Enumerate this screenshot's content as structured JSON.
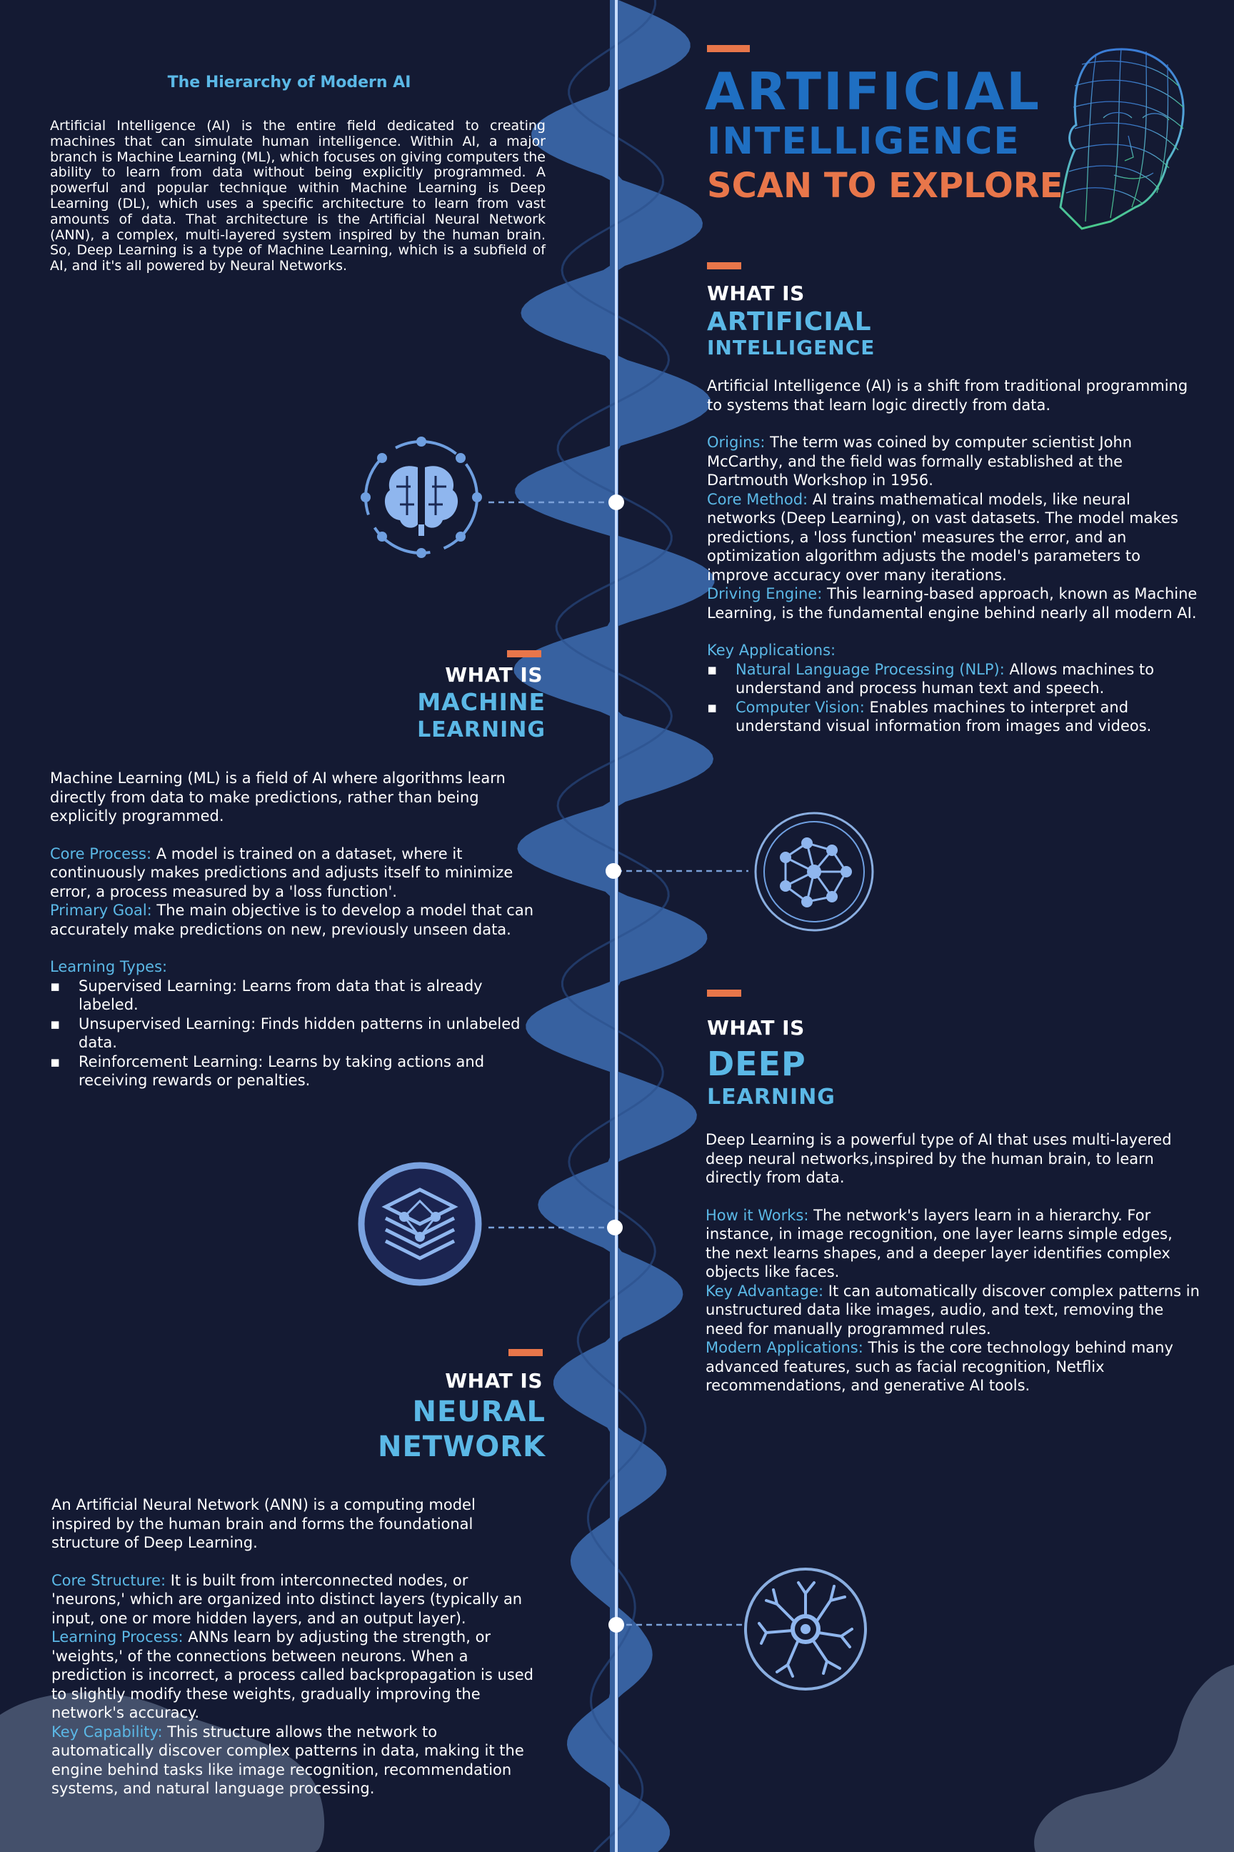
{
  "header": {
    "title_line1": "ARTIFICIAL",
    "title_line2": "INTELLIGENCE",
    "title_line3": "SCAN TO EXPLORE",
    "colors": {
      "background": "#141a33",
      "accent": "#e8764a",
      "primary_blue": "#1f6fc2",
      "light_blue": "#5bb8e6",
      "wave": "#3d6fb4"
    }
  },
  "intro": {
    "title": "The Hierarchy of Modern AI",
    "text": "Artificial Intelligence (AI) is the entire field dedicated to creating machines that can simulate human intelligence. Within AI, a major branch is Machine Learning (ML), which focuses on giving computers the ability to learn from data without being explicitly programmed. A powerful and popular technique within Machine Learning is Deep Learning (DL), which uses a specific architecture to learn from vast amounts of data. That architecture is the Artificial Neural Network (ANN), a complex, multi-layered system inspired by the human brain. So, Deep Learning is a type of Machine Learning, which is a subfield of AI, and it's all powered by Neural Networks."
  },
  "sections": {
    "ai": {
      "what_is": "WHAT IS",
      "title_line1": "ARTIFICIAL",
      "title_line2": "INTELLIGENCE",
      "intro": "Artificial Intelligence (AI) is a shift from traditional programming to systems that learn logic directly from data.",
      "origins_label": "Origins:",
      "origins_text": " The term was coined by computer scientist John McCarthy, and the field was formally established at the Dartmouth Workshop in 1956.",
      "core_label": "Core Method:",
      "core_text": " AI trains mathematical models, like neural networks (Deep Learning), on vast datasets. The model makes predictions, a 'loss function' measures the error, and an optimization algorithm adjusts the model's parameters to improve accuracy over many iterations.",
      "engine_label": "Driving Engine:",
      "engine_text": " This learning-based approach, known as Machine Learning, is the fundamental engine behind nearly all modern AI.",
      "apps_label": "Key Applications:",
      "bullet_char": "▪",
      "apps": [
        {
          "label": "Natural Language Processing (NLP):",
          "text": " Allows machines to understand and process human text and speech."
        },
        {
          "label": "Computer Vision:",
          "text": " Enables machines to interpret and understand visual information from images and videos."
        }
      ],
      "icon": "brain-icon"
    },
    "ml": {
      "what_is": "WHAT IS",
      "title_line1": "MACHINE",
      "title_line2": "LEARNING",
      "intro": "Machine Learning (ML) is a field of AI where algorithms learn directly from data to make predictions, rather than being explicitly programmed.",
      "core_label": "Core Process:",
      "core_text": " A model is trained on a dataset, where it continuously makes predictions and adjusts itself to minimize error, a process measured by a 'loss function'.",
      "goal_label": "Primary Goal:",
      "goal_text": " The main objective is to develop a model that can accurately make predictions on new, previously unseen data.",
      "types_label": "Learning Types:",
      "bullet_char": "▪",
      "types": [
        "Supervised Learning: Learns from data that is already labeled.",
        "Unsupervised Learning: Finds hidden patterns in unlabeled data.",
        "Reinforcement Learning: Learns by taking actions and receiving rewards or penalties."
      ],
      "icon": "network-nodes-icon"
    },
    "dl": {
      "what_is": "WHAT IS",
      "title_line1": "DEEP",
      "title_line2": "LEARNING",
      "intro": "Deep Learning is a powerful type of AI that uses multi-layered deep neural networks,inspired by the human brain, to learn directly from data.",
      "how_label": "How it Works:",
      "how_text": " The network's layers learn in a hierarchy. For instance, in image recognition, one layer learns simple edges, the next learns shapes, and a deeper layer identifies complex objects like faces.",
      "adv_label": "Key Advantage:",
      "adv_text": " It can automatically discover complex patterns in unstructured data like images, audio, and text, removing the need for manually programmed rules.",
      "apps_label": "Modern Applications:",
      "apps_text": " This is the core technology behind many advanced features, such as facial recognition, Netflix recommendations, and generative AI tools.",
      "icon": "layers-icon"
    },
    "nn": {
      "what_is": "WHAT IS",
      "title_line1": "NEURAL",
      "title_line2": "NETWORK",
      "intro": "An Artificial Neural Network (ANN) is a computing model inspired by the human brain and forms the foundational structure of Deep Learning.",
      "core_label": "Core Structure:",
      "core_text": " It is built from interconnected nodes, or 'neurons,' which are organized into distinct layers (typically an input, one or more hidden layers, and an output layer).",
      "learn_label": "Learning Process:",
      "learn_text": " ANNs learn by adjusting the strength, or 'weights,' of the connections between neurons. When a prediction is incorrect, a process called backpropagation is used to slightly modify these weights, gradually improving the network's accuracy.",
      "cap_label": "Key Capability:",
      "cap_text": " This structure allows the network to automatically discover complex patterns in data, making it the engine behind tasks like image recognition, recommendation systems, and natural language processing.",
      "icon": "neuron-icon"
    }
  }
}
